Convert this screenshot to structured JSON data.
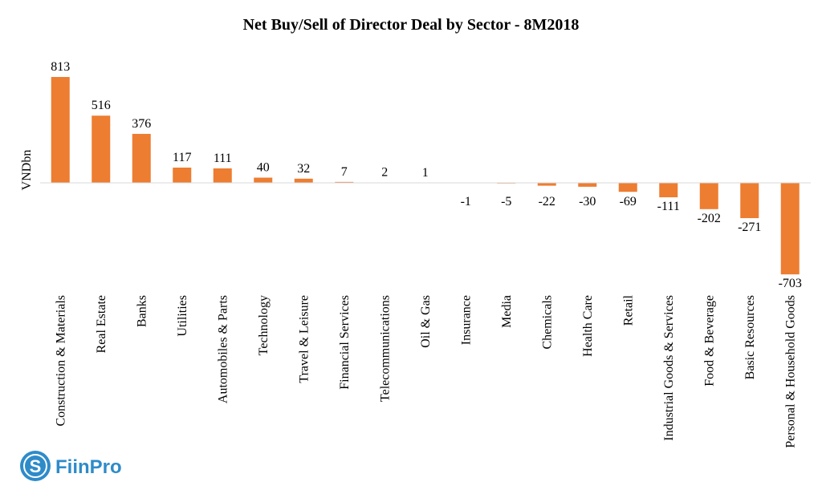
{
  "chart_data": {
    "type": "bar",
    "title": "Net Buy/Sell of Director Deal by Sector - 8M2018",
    "xlabel": "",
    "ylabel": "VNDbn",
    "categories": [
      "Construction & Materials",
      "Real Estate",
      "Banks",
      "Utilities",
      "Automobiles & Parts",
      "Technology",
      "Travel & Leisure",
      "Financial Services",
      "Telecommunications",
      "Oil & Gas",
      "Insurance",
      "Media",
      "Chemicals",
      "Health Care",
      "Retail",
      "Industrial Goods & Services",
      "Food & Beverage",
      "Basic Resources",
      "Personal & Household Goods"
    ],
    "values": [
      813,
      516,
      376,
      117,
      111,
      40,
      32,
      7,
      2,
      1,
      -1,
      -5,
      -22,
      -30,
      -69,
      -111,
      -202,
      -271,
      -703
    ],
    "ylim": [
      -703,
      813
    ],
    "grid": false,
    "legend": "none",
    "bar_color": "#ED7D31",
    "axis_color": "#D9D9D9"
  },
  "logo": {
    "text": "FiinPro",
    "color": "#2E8BC9"
  }
}
